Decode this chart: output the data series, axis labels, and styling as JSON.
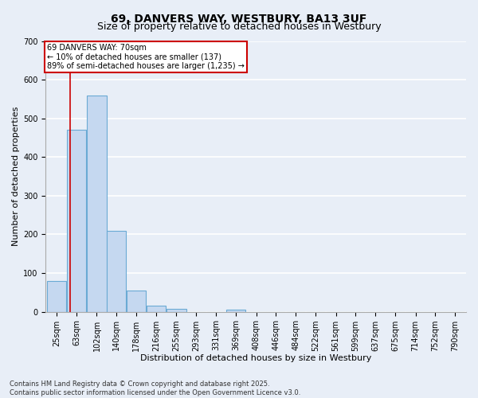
{
  "title": "69, DANVERS WAY, WESTBURY, BA13 3UF",
  "subtitle": "Size of property relative to detached houses in Westbury",
  "xlabel": "Distribution of detached houses by size in Westbury",
  "ylabel": "Number of detached properties",
  "footnote": "Contains HM Land Registry data © Crown copyright and database right 2025.\nContains public sector information licensed under the Open Government Licence v3.0.",
  "bins": [
    25,
    63,
    102,
    140,
    178,
    216,
    255,
    293,
    331,
    369,
    408,
    446,
    484,
    522,
    561,
    599,
    637,
    675,
    714,
    752,
    790
  ],
  "counts": [
    80,
    470,
    560,
    210,
    55,
    15,
    8,
    0,
    0,
    5,
    0,
    0,
    0,
    0,
    0,
    0,
    0,
    0,
    0,
    0,
    0
  ],
  "bar_color": "#c5d8f0",
  "bar_edge_color": "#6aaad4",
  "red_line_x": 70,
  "annotation_text": "69 DANVERS WAY: 70sqm\n← 10% of detached houses are smaller (137)\n89% of semi-detached houses are larger (1,235) →",
  "annotation_box_color": "#ffffff",
  "annotation_border_color": "#cc0000",
  "ylim": [
    0,
    700
  ],
  "yticks": [
    0,
    100,
    200,
    300,
    400,
    500,
    600,
    700
  ],
  "background_color": "#e8eef7",
  "grid_color": "#ffffff",
  "title_fontsize": 10,
  "subtitle_fontsize": 9,
  "axis_label_fontsize": 8,
  "tick_fontsize": 7,
  "footnote_fontsize": 6
}
